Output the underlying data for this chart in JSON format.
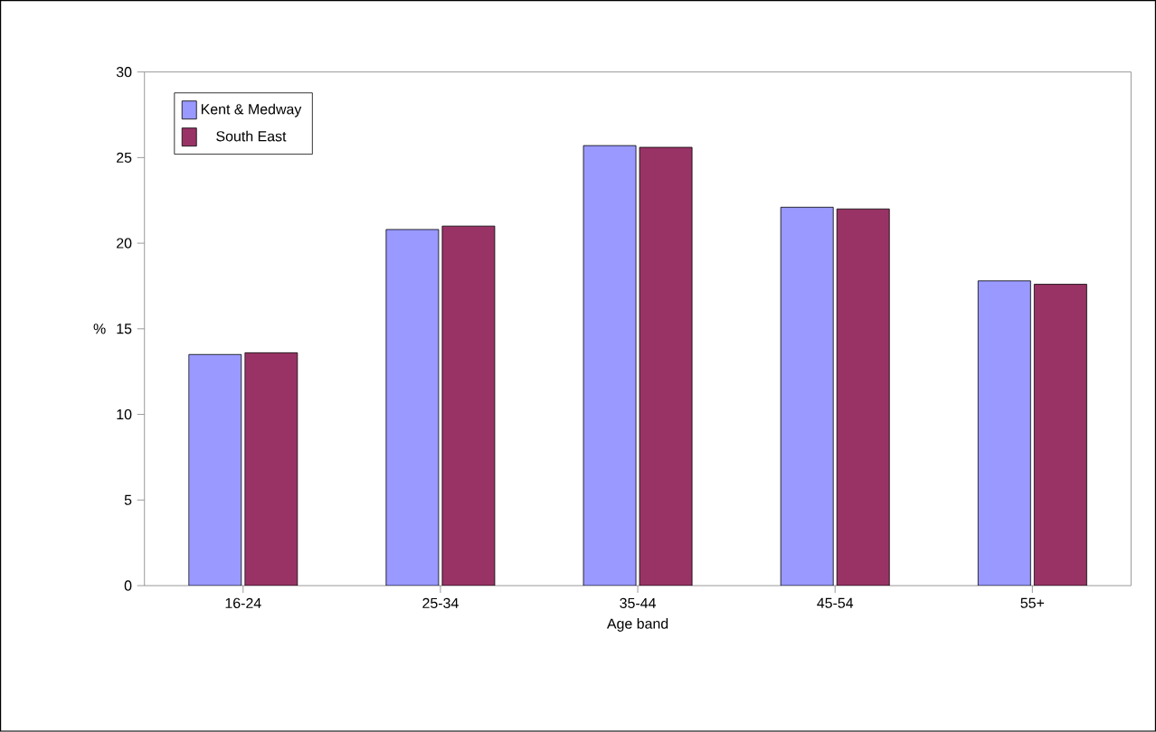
{
  "chart_data": {
    "type": "bar",
    "xlabel": "Age band",
    "ylabel": "%",
    "categories": [
      "16-24",
      "25-34",
      "35-44",
      "45-54",
      "55+"
    ],
    "series": [
      {
        "name": "Kent & Medway",
        "color": "#9999ff",
        "values": [
          13.5,
          20.8,
          25.7,
          22.1,
          17.8
        ]
      },
      {
        "name": "South East",
        "color": "#993366",
        "values": [
          13.6,
          21.0,
          25.6,
          22.0,
          17.6
        ]
      }
    ],
    "ylim": [
      0,
      30
    ],
    "yticks": [
      0,
      5,
      10,
      15,
      20,
      25,
      30
    ],
    "grid": false,
    "legend": "top left"
  }
}
